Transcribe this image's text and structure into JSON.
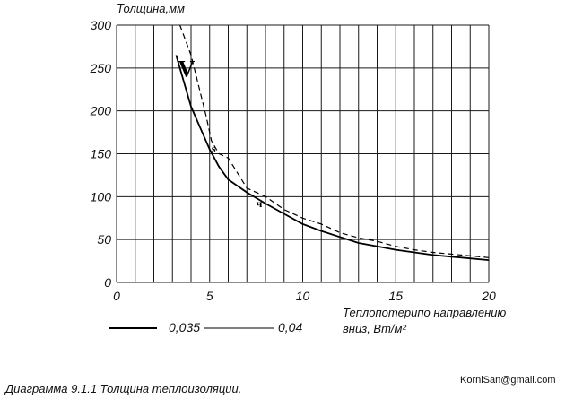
{
  "chart_data": {
    "type": "line",
    "ylabel": "Толщина,мм",
    "xlabel_line1": "Теплопотерипо направлению",
    "xlabel_line2": "вниз, Вт/м²",
    "xlim": [
      0,
      20
    ],
    "ylim": [
      0,
      300
    ],
    "x_ticks": [
      0,
      5,
      10,
      15,
      20
    ],
    "y_ticks": [
      0,
      50,
      100,
      150,
      200,
      250,
      300
    ],
    "grid": true,
    "legend_position": "bottom-left",
    "series": [
      {
        "name": "0,035",
        "style": "solid",
        "points": [
          [
            3.2,
            265
          ],
          [
            3.6,
            235
          ],
          [
            4.0,
            205
          ],
          [
            4.5,
            180
          ],
          [
            5.0,
            155
          ],
          [
            5.5,
            135
          ],
          [
            6.0,
            120
          ],
          [
            7.0,
            105
          ],
          [
            8.0,
            92
          ],
          [
            9.0,
            80
          ],
          [
            10.0,
            68
          ],
          [
            11.0,
            60
          ],
          [
            12.0,
            53
          ],
          [
            13.0,
            46
          ],
          [
            14.0,
            42
          ],
          [
            15.0,
            38
          ],
          [
            16.0,
            35
          ],
          [
            17.0,
            32
          ],
          [
            18.0,
            30
          ],
          [
            19.0,
            28
          ],
          [
            20.0,
            26
          ]
        ]
      },
      {
        "name": "0,04",
        "style": "dashed",
        "points": [
          [
            3.4,
            300
          ],
          [
            4.0,
            265
          ],
          [
            4.4,
            230
          ],
          [
            4.8,
            195
          ],
          [
            5.1,
            165
          ],
          [
            5.5,
            150
          ],
          [
            6.0,
            145
          ],
          [
            7.0,
            110
          ],
          [
            8.0,
            100
          ],
          [
            9.0,
            85
          ],
          [
            10.0,
            75
          ],
          [
            11.0,
            68
          ],
          [
            12.0,
            58
          ],
          [
            13.0,
            52
          ],
          [
            14.0,
            48
          ],
          [
            15.0,
            42
          ],
          [
            16.0,
            38
          ],
          [
            17.0,
            35
          ],
          [
            18.0,
            33
          ],
          [
            19.0,
            31
          ],
          [
            20.0,
            29
          ]
        ]
      }
    ],
    "annotations": [
      {
        "text": "V",
        "x": 3.3,
        "y": 240
      },
      {
        "text": "s",
        "x": 5.1,
        "y": 152
      },
      {
        "text": "ч",
        "x": 7.5,
        "y": 88
      }
    ]
  },
  "caption": "Диаграмма 9.1.1 Толщина теплоизоляции.",
  "email": "KorniSan@gmail.com"
}
